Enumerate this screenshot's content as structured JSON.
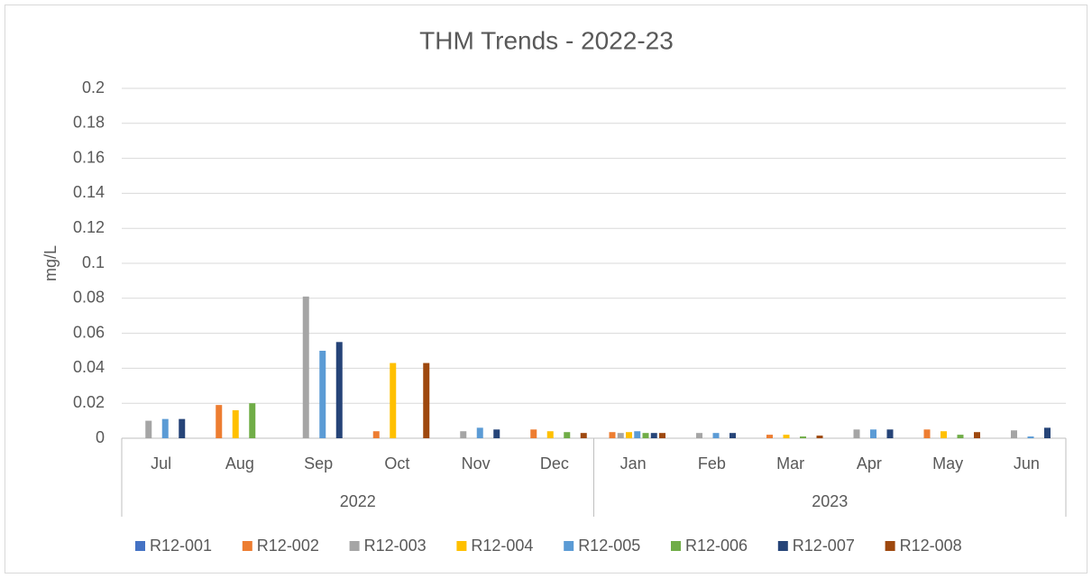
{
  "chart_data": {
    "type": "bar",
    "title": "THM Trends - 2022-23",
    "y_label": "mg/L",
    "categories": [
      "Jul",
      "Aug",
      "Sep",
      "Oct",
      "Nov",
      "Dec",
      "Jan",
      "Feb",
      "Mar",
      "Apr",
      "May",
      "Jun"
    ],
    "category_groups": [
      {
        "label": "2022",
        "span": 6
      },
      {
        "label": "2023",
        "span": 6
      }
    ],
    "series": [
      {
        "name": "R12-001",
        "color": "#4472c4",
        "values": [
          null,
          null,
          null,
          null,
          null,
          null,
          null,
          null,
          null,
          null,
          null,
          null
        ]
      },
      {
        "name": "R12-002",
        "color": "#ed7d31",
        "values": [
          null,
          0.019,
          null,
          0.004,
          null,
          0.005,
          0.0035,
          null,
          0.002,
          null,
          0.005,
          null
        ]
      },
      {
        "name": "R12-003",
        "color": "#a5a5a5",
        "values": [
          0.01,
          null,
          0.081,
          null,
          0.004,
          null,
          0.003,
          0.003,
          null,
          0.005,
          null,
          0.0045
        ]
      },
      {
        "name": "R12-004",
        "color": "#ffc000",
        "values": [
          null,
          0.016,
          null,
          0.043,
          null,
          0.004,
          0.0035,
          null,
          0.002,
          null,
          0.004,
          null
        ]
      },
      {
        "name": "R12-005",
        "color": "#5b9bd5",
        "values": [
          0.011,
          null,
          0.05,
          null,
          0.006,
          null,
          0.004,
          0.003,
          null,
          0.005,
          null,
          0.001
        ]
      },
      {
        "name": "R12-006",
        "color": "#70ad47",
        "values": [
          null,
          0.02,
          null,
          null,
          null,
          0.0035,
          0.003,
          null,
          0.001,
          null,
          0.002,
          null
        ]
      },
      {
        "name": "R12-007",
        "color": "#264478",
        "values": [
          0.011,
          null,
          0.055,
          null,
          0.005,
          null,
          0.003,
          0.003,
          null,
          0.005,
          null,
          0.006
        ]
      },
      {
        "name": "R12-008",
        "color": "#9e480e",
        "values": [
          null,
          null,
          null,
          0.043,
          null,
          0.003,
          0.003,
          null,
          0.0015,
          null,
          0.0035,
          null
        ]
      }
    ],
    "ylim": [
      0,
      0.2
    ],
    "yticks": [
      0,
      0.02,
      0.04,
      0.06,
      0.08,
      0.1,
      0.12,
      0.14,
      0.16,
      0.18,
      0.2
    ],
    "grid": true,
    "legend": "bottom"
  }
}
